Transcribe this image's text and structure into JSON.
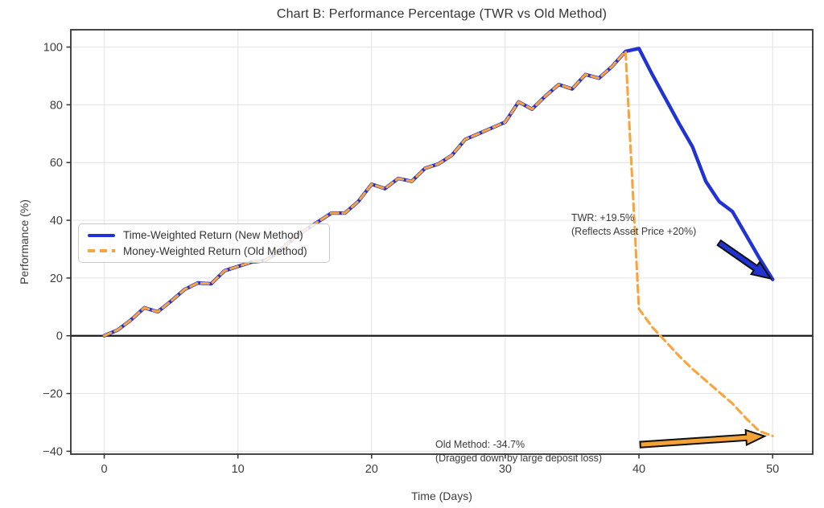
{
  "page": {
    "background": "#ffffff"
  },
  "chart_data": {
    "type": "line",
    "title": "Chart B: Performance Percentage (TWR vs Old Method)",
    "xlabel": "Time (Days)",
    "ylabel": "Performance (%)",
    "xlim": [
      -2.5,
      53
    ],
    "ylim": [
      -41,
      106
    ],
    "x_ticks": [
      0,
      10,
      20,
      30,
      40,
      50
    ],
    "y_ticks": [
      -40,
      -20,
      0,
      20,
      40,
      60,
      80,
      100
    ],
    "grid": true,
    "zero_line": 0,
    "legend_position": "center-left",
    "colors": {
      "grid": "#e7e7e7",
      "spine": "#333333",
      "zero_line": "#1a1a1a",
      "text": "#3a3a3a",
      "arrow_outline": "#111111"
    },
    "x": [
      0,
      1,
      2,
      3,
      4,
      5,
      6,
      7,
      8,
      9,
      10,
      11,
      12,
      13,
      14,
      15,
      16,
      17,
      18,
      19,
      20,
      21,
      22,
      23,
      24,
      25,
      26,
      27,
      28,
      29,
      30,
      31,
      32,
      33,
      34,
      35,
      36,
      37,
      38,
      39,
      40,
      41,
      42,
      43,
      44,
      45,
      46,
      47,
      48,
      49,
      50
    ],
    "series": [
      {
        "name": "Time-Weighted Return (New Method)",
        "color": "#2133d4",
        "style": "solid",
        "line_width": 4.4,
        "values": [
          0,
          2,
          5.5,
          9.7,
          8.3,
          12,
          16,
          18.3,
          18,
          22.5,
          24,
          25.5,
          26,
          29,
          33,
          36.5,
          39.5,
          42.5,
          42.5,
          46.5,
          52.5,
          51,
          54.5,
          53.5,
          58,
          59.5,
          62.5,
          68,
          70,
          72,
          74,
          81,
          78.5,
          83,
          87,
          85.5,
          90.5,
          89.2,
          93.3,
          98.5,
          99.5,
          90.5,
          82,
          73.5,
          65.5,
          53.5,
          46.5,
          43,
          35,
          27,
          19.5
        ]
      },
      {
        "name": "Money-Weighted Return (Old Method)",
        "color": "#f9a43c",
        "style": "dashed",
        "line_width": 3.1,
        "values": [
          0,
          2,
          5.5,
          9.7,
          8.3,
          12,
          16,
          18.3,
          18,
          22.5,
          24,
          25.5,
          26,
          29,
          33,
          36.5,
          39.5,
          42.5,
          42.5,
          46.5,
          52.5,
          51,
          54.5,
          53.5,
          58,
          59.5,
          62.5,
          68,
          70,
          72,
          74,
          81,
          78.5,
          83,
          87,
          85.5,
          90.5,
          89.2,
          93.3,
          98.5,
          9.3,
          3,
          -2,
          -7,
          -11.5,
          -15.5,
          -19.5,
          -23.5,
          -28.5,
          -33,
          -34.7
        ]
      }
    ],
    "annotations": [
      {
        "id": "twr",
        "line1": "TWR: +19.5%",
        "line2": "(Reflects Asset Price +20%)",
        "final_value": 19.5,
        "arrow": {
          "color": "#2133d4",
          "from": [
            46.0,
            32.2
          ],
          "to": [
            49.85,
            19.8
          ]
        }
      },
      {
        "id": "old",
        "line1": "Old Method: -34.7%",
        "line2": "(Dragged down by large deposit loss)",
        "final_value": -34.7,
        "arrow": {
          "color": "#f2a236",
          "from": [
            40.1,
            -37.7
          ],
          "to": [
            49.4,
            -34.8
          ]
        }
      }
    ]
  }
}
